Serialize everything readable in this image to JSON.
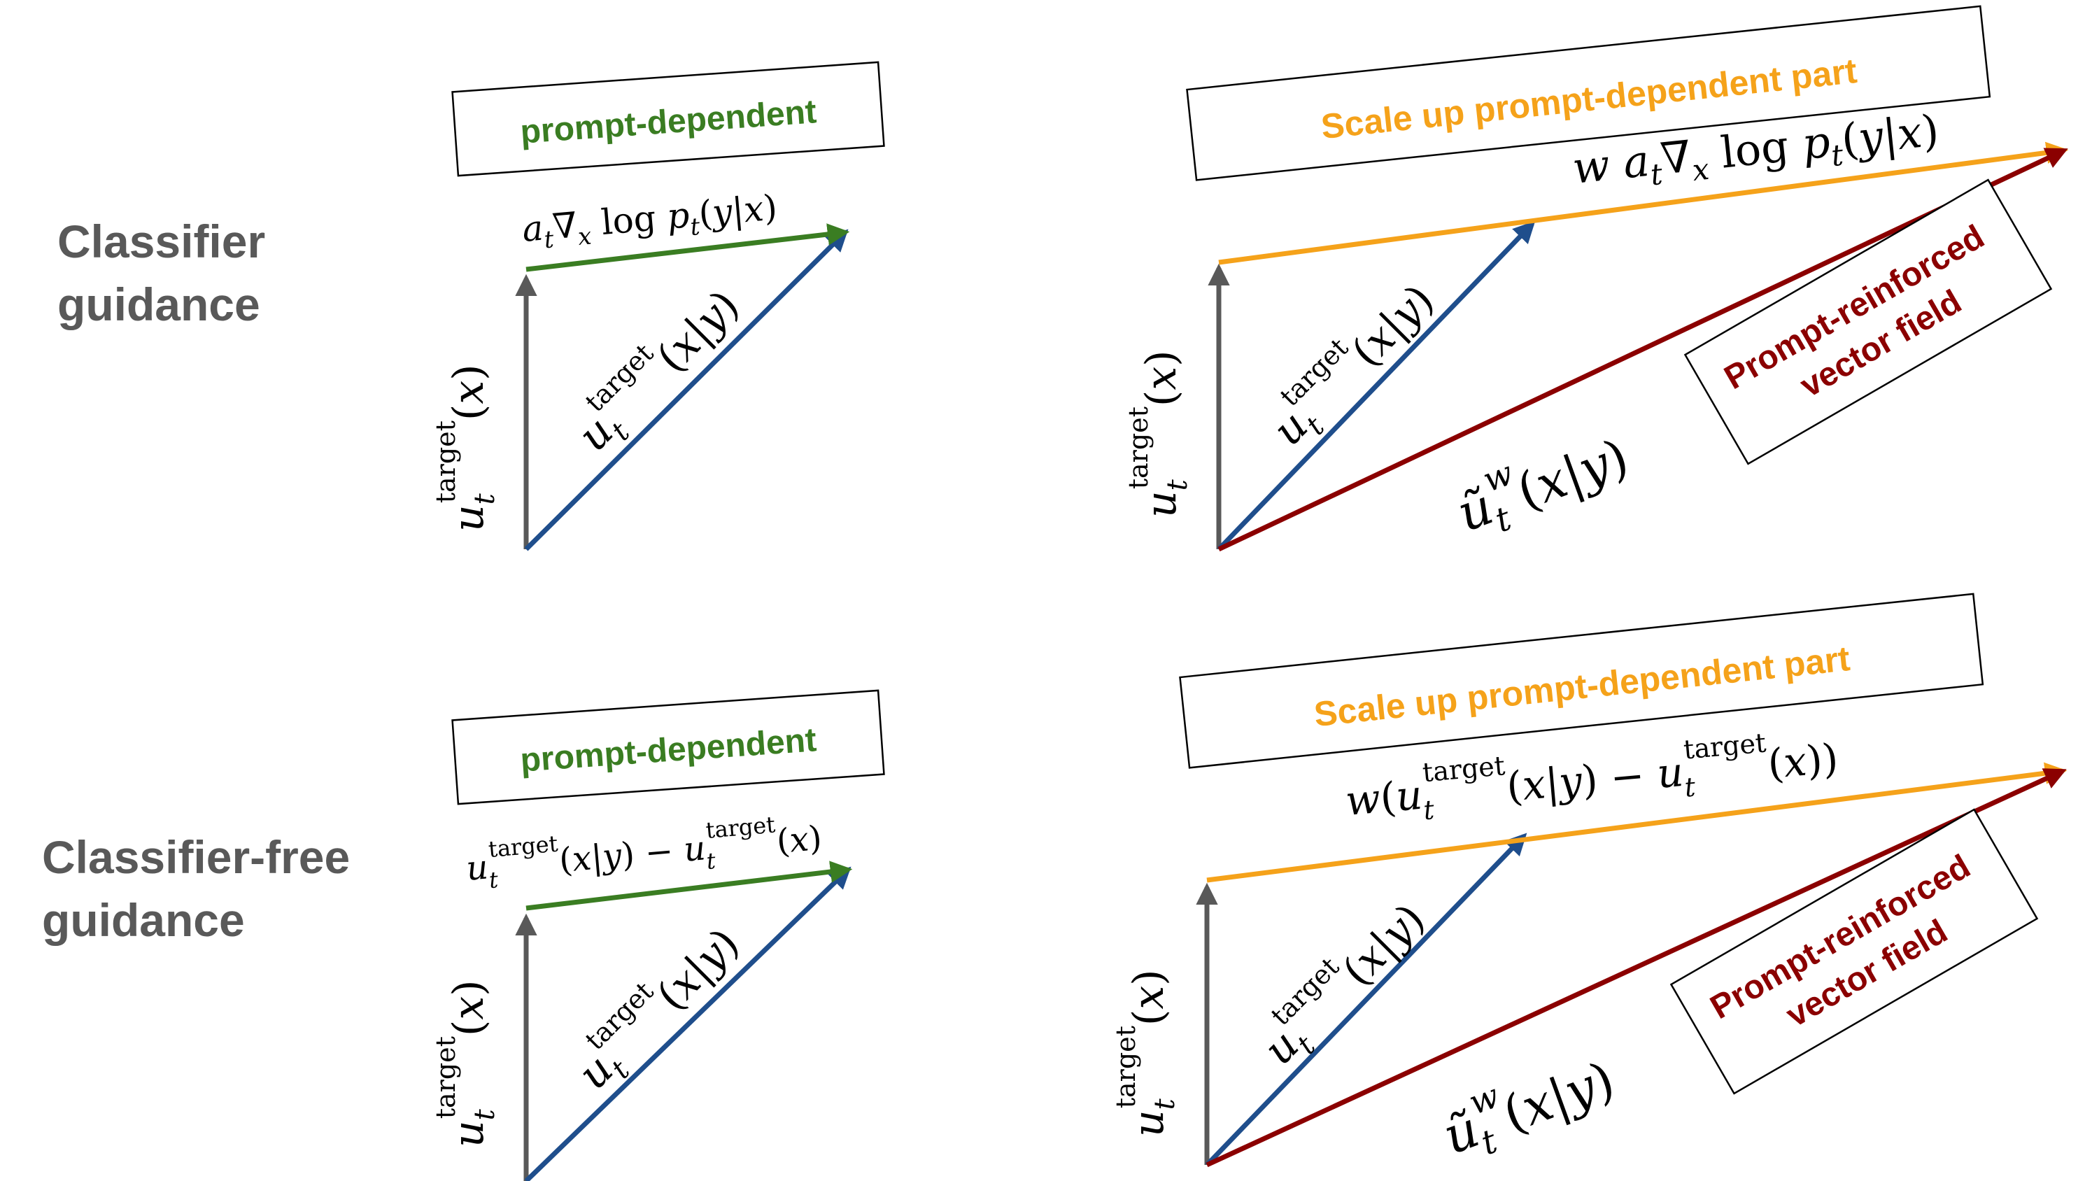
{
  "colors": {
    "gray": "#595959",
    "green": "#3a7d22",
    "blue": "#1f4e8c",
    "orange": "#f5a21a",
    "darkred": "#8b0000",
    "text_gray": "#595959"
  },
  "rows": [
    {
      "label_lines": [
        "Classifier",
        "guidance"
      ],
      "left": {
        "box_label": "prompt-dependent",
        "formula": "a_t ∇_x log p_t(y|x)"
      },
      "right": {
        "scale_label": "Scale up prompt-dependent part",
        "formula": "w a_t ∇_x log p_t(y|x)",
        "reinforced_lines": [
          "Prompt-reinforced",
          "vector field"
        ]
      }
    },
    {
      "label_lines": [
        "Classifier-free",
        "guidance"
      ],
      "left": {
        "box_label": "prompt-dependent",
        "formula": "u_t^target(x|y) − u_t^target(x)"
      },
      "right": {
        "scale_label": "Scale up prompt-dependent part",
        "formula": "w(u_t^target(x|y) − u_t^target(x))",
        "reinforced_lines": [
          "Prompt-reinforced",
          "vector field"
        ]
      }
    }
  ],
  "vector_labels": {
    "uncond": "u_t^target(x)",
    "cond": "u_t^target(x|y)",
    "guided": "ũ_t^w(x|y)"
  }
}
